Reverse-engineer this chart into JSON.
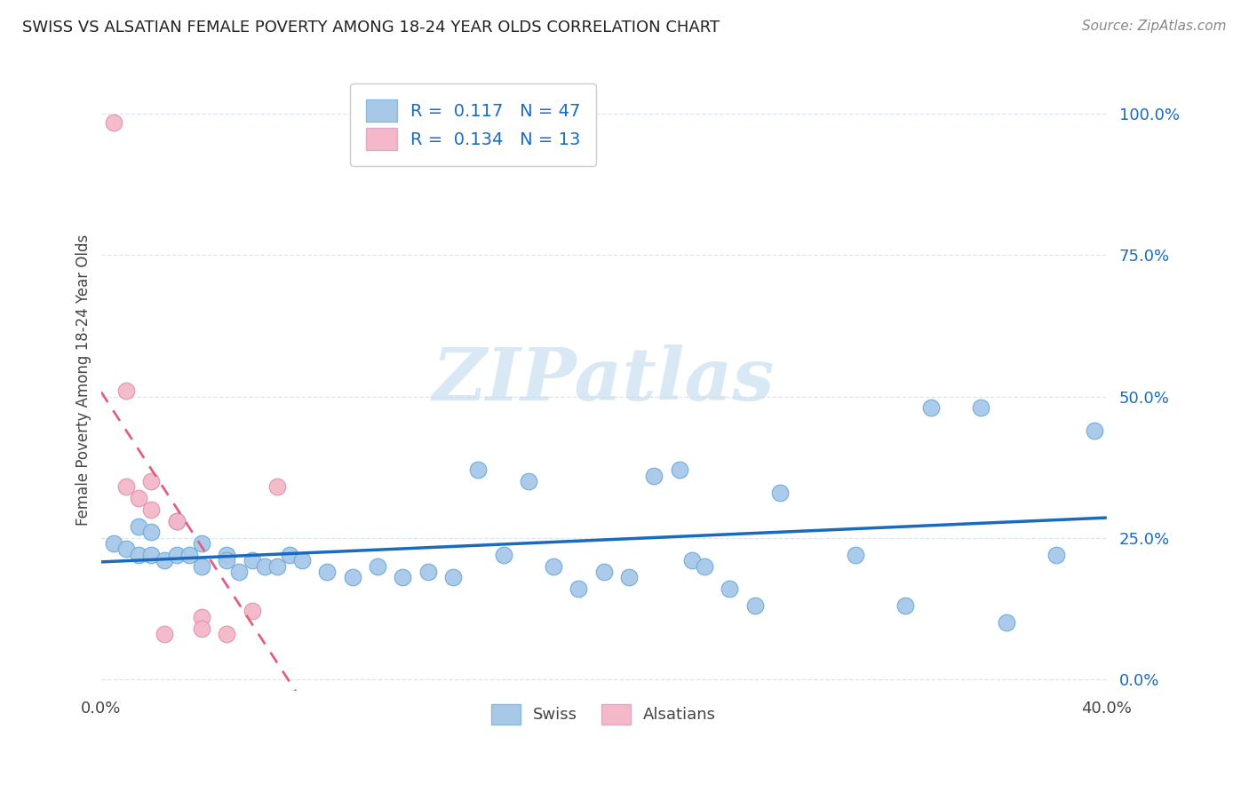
{
  "title": "SWISS VS ALSATIAN FEMALE POVERTY AMONG 18-24 YEAR OLDS CORRELATION CHART",
  "source": "Source: ZipAtlas.com",
  "ylabel": "Female Poverty Among 18-24 Year Olds",
  "ytick_labels": [
    "0.0%",
    "25.0%",
    "50.0%",
    "75.0%",
    "100.0%"
  ],
  "ytick_values": [
    0.0,
    0.25,
    0.5,
    0.75,
    1.0
  ],
  "xlim": [
    0.0,
    0.4
  ],
  "ylim": [
    -0.02,
    1.08
  ],
  "legend_swiss_R": "0.117",
  "legend_swiss_N": "47",
  "legend_alsatian_R": "0.134",
  "legend_alsatian_N": "13",
  "swiss_color": "#a8c8e8",
  "alsatian_color": "#f4b8c8",
  "swiss_line_color": "#1a6abf",
  "alsatian_line_color": "#e06080",
  "watermark_color": "#c8dff0",
  "swiss_x": [
    0.005,
    0.01,
    0.015,
    0.015,
    0.02,
    0.02,
    0.025,
    0.03,
    0.03,
    0.035,
    0.04,
    0.04,
    0.05,
    0.05,
    0.055,
    0.06,
    0.065,
    0.07,
    0.075,
    0.08,
    0.09,
    0.1,
    0.11,
    0.12,
    0.13,
    0.14,
    0.15,
    0.16,
    0.17,
    0.18,
    0.19,
    0.2,
    0.21,
    0.22,
    0.23,
    0.235,
    0.24,
    0.25,
    0.26,
    0.27,
    0.3,
    0.32,
    0.33,
    0.35,
    0.36,
    0.38,
    0.395
  ],
  "swiss_y": [
    0.24,
    0.23,
    0.27,
    0.22,
    0.26,
    0.22,
    0.21,
    0.28,
    0.22,
    0.22,
    0.24,
    0.2,
    0.22,
    0.21,
    0.19,
    0.21,
    0.2,
    0.2,
    0.22,
    0.21,
    0.19,
    0.18,
    0.2,
    0.18,
    0.19,
    0.18,
    0.37,
    0.22,
    0.35,
    0.2,
    0.16,
    0.19,
    0.18,
    0.36,
    0.37,
    0.21,
    0.2,
    0.16,
    0.13,
    0.33,
    0.22,
    0.13,
    0.48,
    0.48,
    0.1,
    0.22,
    0.44
  ],
  "alsatian_x": [
    0.005,
    0.01,
    0.01,
    0.015,
    0.02,
    0.02,
    0.025,
    0.03,
    0.04,
    0.04,
    0.05,
    0.06,
    0.07
  ],
  "alsatian_y": [
    0.985,
    0.51,
    0.34,
    0.32,
    0.35,
    0.3,
    0.08,
    0.28,
    0.11,
    0.09,
    0.08,
    0.12,
    0.34
  ],
  "grid_color": "#dde5ee",
  "grid_style": "--"
}
